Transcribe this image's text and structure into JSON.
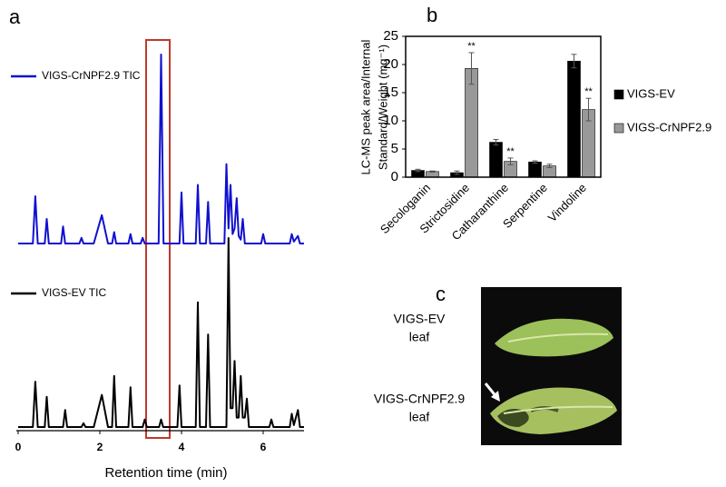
{
  "chart_data": [
    {
      "type": "line",
      "panel_label": "a",
      "x_label": "Retention time (min)",
      "xlim": [
        0,
        7
      ],
      "xticks": [
        0,
        2,
        4,
        6
      ],
      "series": [
        {
          "name": "VIGS-CrNPF2.9 TIC",
          "color": "#1010d0",
          "x": [
            0,
            0.36,
            0.42,
            0.48,
            0.65,
            0.7,
            0.75,
            1.05,
            1.1,
            1.15,
            1.5,
            1.55,
            1.6,
            1.85,
            2.05,
            2.2,
            2.3,
            2.35,
            2.4,
            2.7,
            2.75,
            2.8,
            3.0,
            3.05,
            3.1,
            3.44,
            3.5,
            3.56,
            3.95,
            4.0,
            4.05,
            4.35,
            4.4,
            4.45,
            4.6,
            4.65,
            4.7,
            5.05,
            5.1,
            5.15,
            5.2,
            5.25,
            5.3,
            5.35,
            5.4,
            5.45,
            5.5,
            5.55,
            5.95,
            6.0,
            6.05,
            6.65,
            6.7,
            6.75,
            6.85,
            6.9,
            7
          ],
          "values": [
            0,
            0,
            25,
            0,
            0,
            13,
            0,
            0,
            9,
            0,
            0,
            3,
            0,
            0,
            15,
            0,
            0,
            6,
            0,
            0,
            5,
            0,
            0,
            3,
            0,
            0,
            100,
            0,
            0,
            27,
            0,
            0,
            31,
            0,
            0,
            22,
            0,
            0,
            42,
            8,
            31,
            5,
            8,
            24,
            4,
            2,
            13,
            0,
            0,
            5,
            0,
            0,
            5,
            1,
            4,
            0,
            0
          ]
        },
        {
          "name": "VIGS-EV TIC",
          "color": "#000000",
          "x": [
            0,
            0.36,
            0.42,
            0.48,
            0.65,
            0.7,
            0.75,
            1.1,
            1.15,
            1.2,
            1.55,
            1.6,
            1.65,
            1.85,
            2.05,
            2.2,
            2.3,
            2.35,
            2.4,
            2.7,
            2.75,
            2.8,
            3.05,
            3.1,
            3.15,
            3.45,
            3.5,
            3.55,
            3.9,
            3.95,
            4.0,
            4.35,
            4.4,
            4.45,
            4.6,
            4.65,
            4.7,
            5.1,
            5.15,
            5.2,
            5.25,
            5.3,
            5.35,
            5.4,
            5.45,
            5.5,
            5.55,
            5.6,
            5.65,
            6.15,
            6.2,
            6.25,
            6.65,
            6.7,
            6.75,
            6.85,
            6.9,
            7
          ],
          "values": [
            0,
            0,
            24,
            0,
            0,
            16,
            0,
            0,
            9,
            0,
            0,
            2,
            0,
            0,
            17,
            0,
            0,
            27,
            0,
            0,
            21,
            0,
            0,
            4,
            0,
            0,
            4,
            0,
            0,
            22,
            0,
            0,
            66,
            0,
            0,
            49,
            0,
            0,
            100,
            10,
            10,
            35,
            5,
            5,
            27,
            5,
            5,
            15,
            0,
            0,
            4,
            0,
            0,
            7,
            1,
            9,
            0,
            0
          ]
        }
      ]
    },
    {
      "type": "bar",
      "panel_label": "b",
      "y_label": [
        "LC-MS peak area/Internal",
        "Standard/Weight (mg⁻¹)"
      ],
      "categories": [
        "Secologanin",
        "Strictosidine",
        "Catharanthine",
        "Serpentine",
        "Vindoline"
      ],
      "ylim": [
        0,
        25
      ],
      "yticks": [
        0,
        5,
        10,
        15,
        20,
        25
      ],
      "series": [
        {
          "name": "VIGS-EV",
          "color": "#000000",
          "values": [
            1.2,
            0.8,
            6.2,
            2.7,
            20.6
          ],
          "errors": [
            0.2,
            0.3,
            0.5,
            0.2,
            1.2
          ]
        },
        {
          "name": "VIGS-CrNPF2.9",
          "color": "#999999",
          "values": [
            1.0,
            19.3,
            2.8,
            2.0,
            12.0
          ],
          "errors": [
            0.1,
            2.8,
            0.6,
            0.3,
            2.0
          ],
          "significance": [
            null,
            "**",
            "**",
            null,
            "**"
          ]
        }
      ]
    }
  ],
  "panel_c": {
    "label": "c",
    "rows": [
      {
        "lines": [
          "VIGS-EV",
          "leaf"
        ]
      },
      {
        "lines": [
          "VIGS-CrNPF2.9",
          "leaf"
        ]
      }
    ]
  }
}
